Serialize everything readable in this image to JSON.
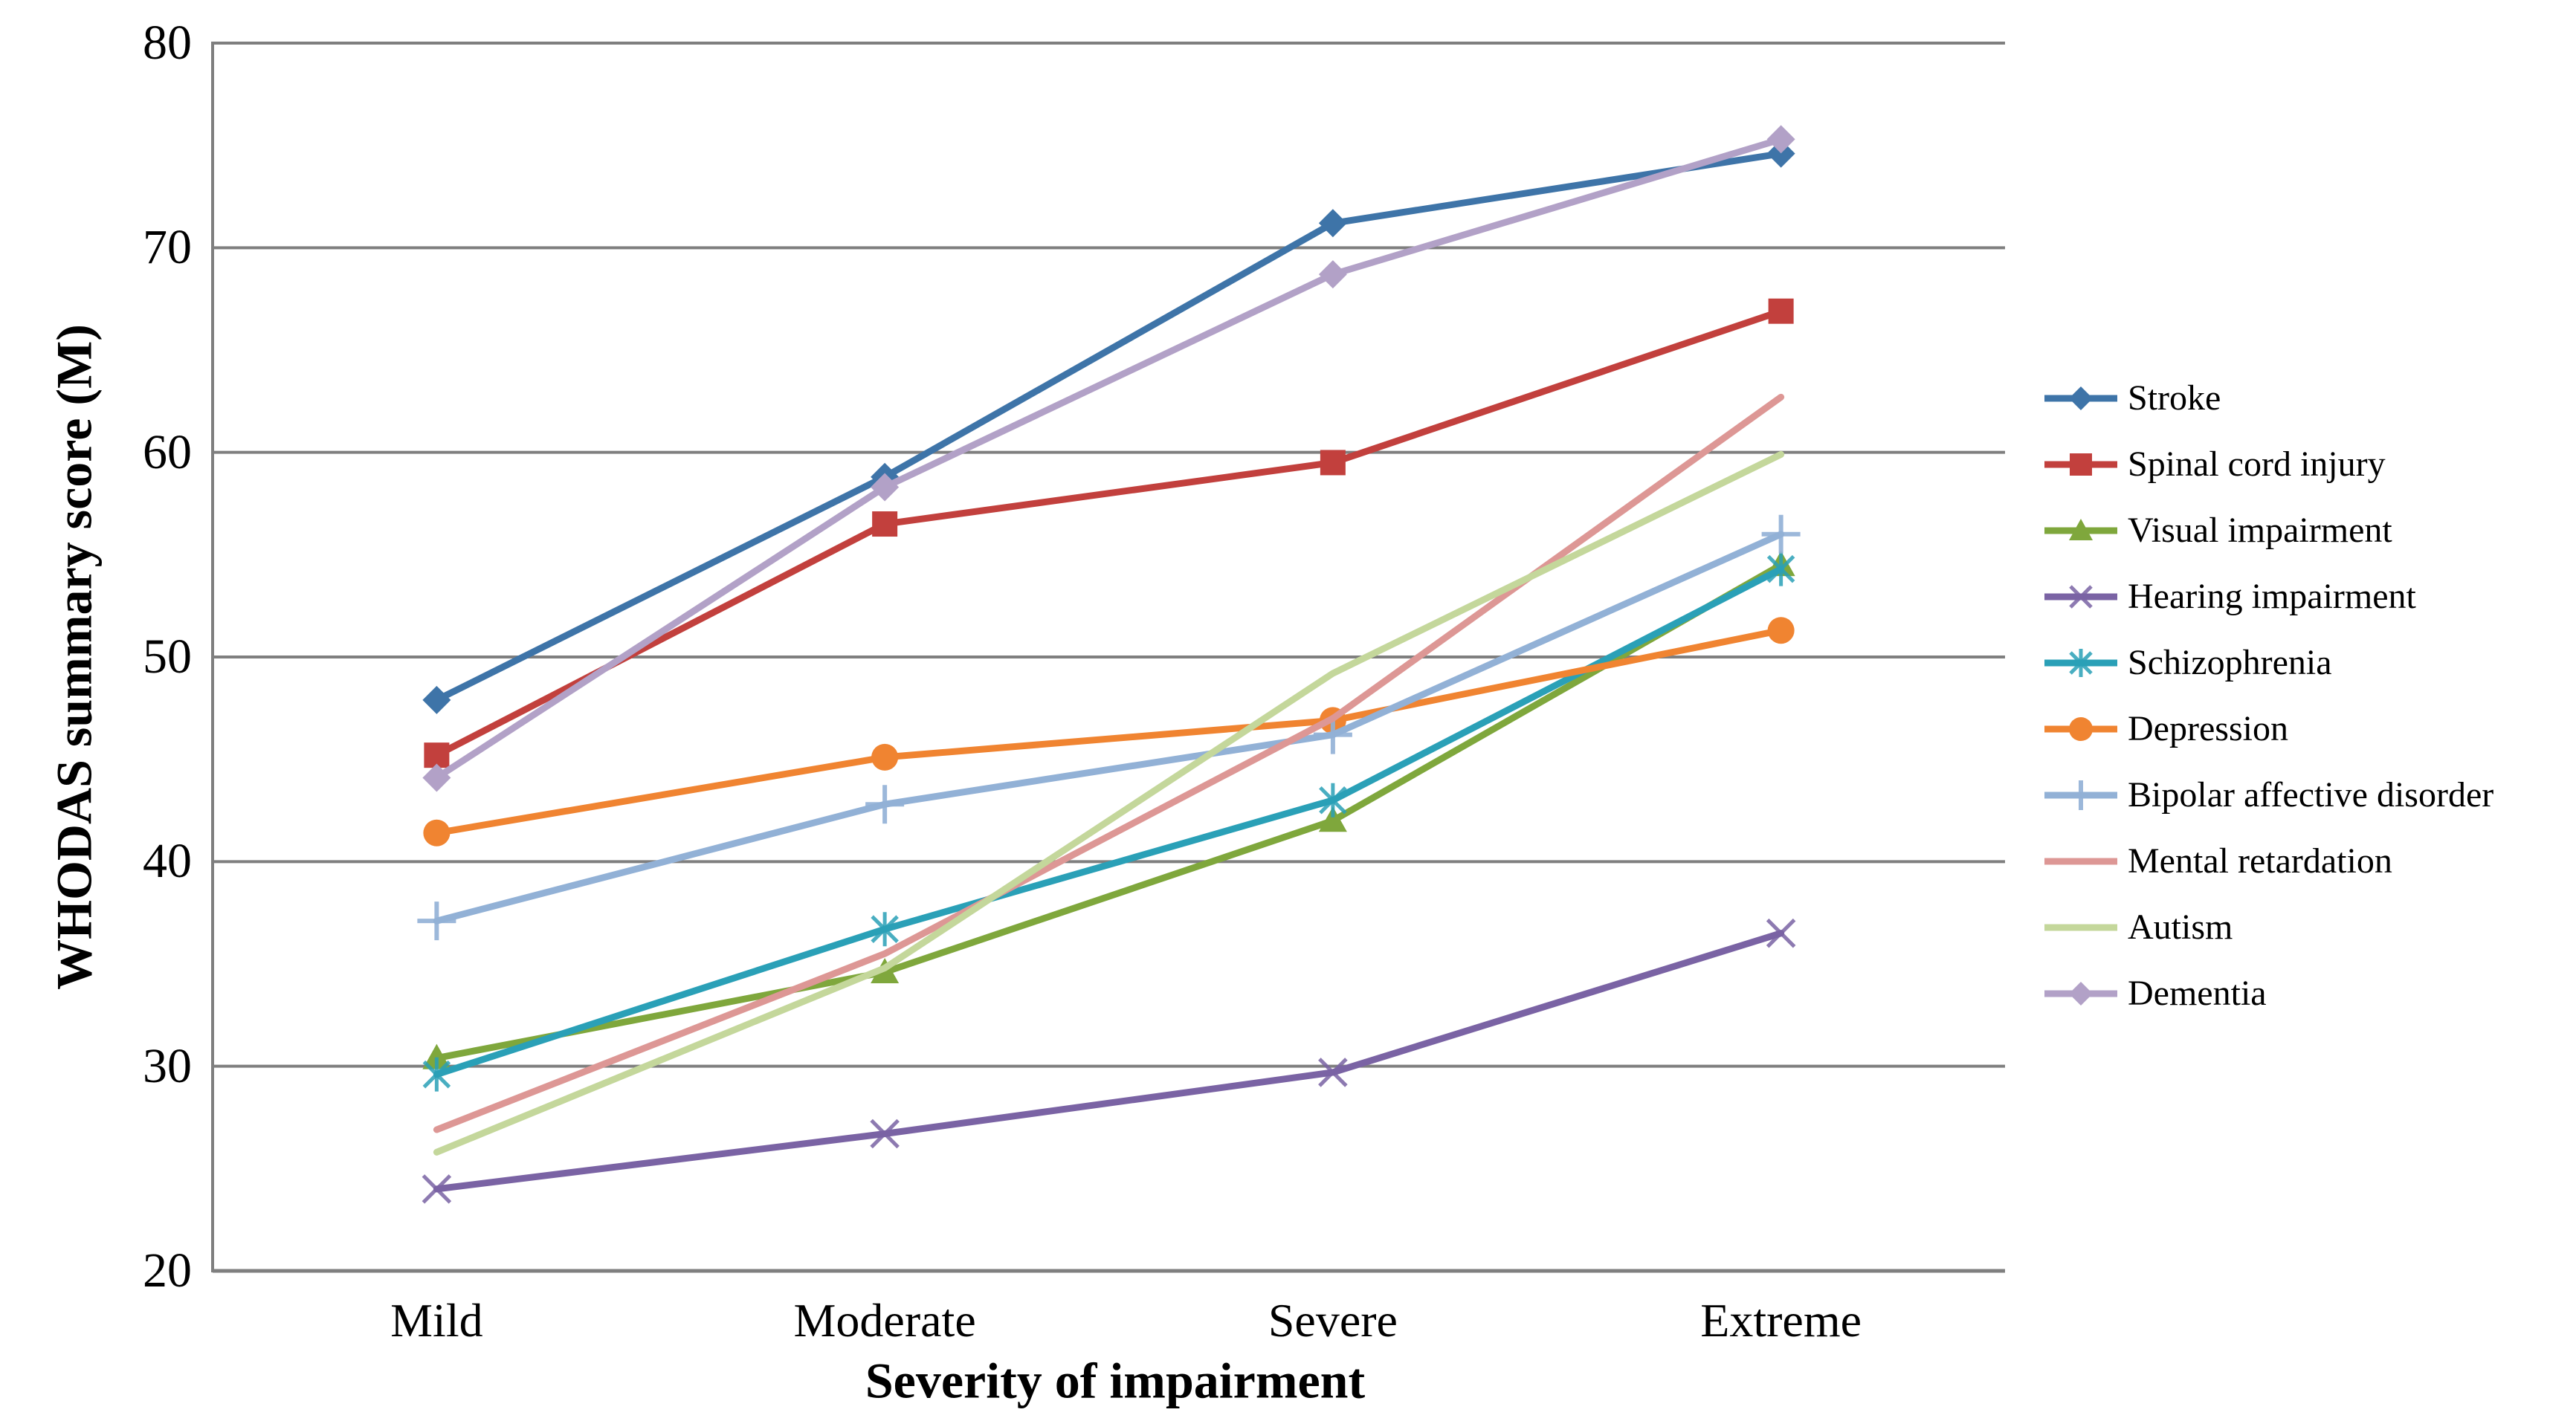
{
  "grid_color": "#7F7F7F",
  "background_color": "#FFFFFF",
  "text_color": "#000000",
  "chart_data": {
    "type": "line",
    "title": "",
    "xlabel": "Severity of impairment",
    "ylabel": "WHODAS summary score (M)",
    "ylim": [
      20,
      80
    ],
    "yticks": [
      20,
      30,
      40,
      50,
      60,
      70,
      80
    ],
    "grid": true,
    "legend_position": "right",
    "categories": [
      "Mild",
      "Moderate",
      "Severe",
      "Extreme"
    ],
    "series": [
      {
        "name": "Stroke",
        "color": "#3E74A8",
        "marker": "diamond",
        "values": [
          47.9,
          58.8,
          71.2,
          74.6
        ]
      },
      {
        "name": "Spinal cord injury",
        "color": "#C2403D",
        "marker": "square",
        "values": [
          45.2,
          56.5,
          59.5,
          66.9
        ]
      },
      {
        "name": "Visual impairment",
        "color": "#7FA73C",
        "marker": "triangle",
        "values": [
          30.4,
          34.6,
          42.0,
          54.5
        ]
      },
      {
        "name": "Hearing impairment",
        "color": "#7A63A4",
        "marker": "x",
        "values": [
          24.0,
          26.7,
          29.7,
          36.5
        ]
      },
      {
        "name": "Schizophrenia",
        "color": "#2AA0B7",
        "marker": "asterisk",
        "values": [
          29.6,
          36.7,
          43.0,
          54.3
        ]
      },
      {
        "name": "Depression",
        "color": "#F08431",
        "marker": "circle",
        "values": [
          41.4,
          45.1,
          46.9,
          51.3
        ]
      },
      {
        "name": "Bipolar affective disorder",
        "color": "#92B1D6",
        "marker": "plus",
        "values": [
          37.1,
          42.8,
          46.2,
          56.0
        ]
      },
      {
        "name": "Mental retardation",
        "color": "#DD9795",
        "marker": "none",
        "values": [
          26.9,
          35.5,
          47.0,
          62.7
        ]
      },
      {
        "name": "Autism",
        "color": "#C4D79B",
        "marker": "none",
        "values": [
          25.8,
          34.8,
          49.2,
          59.9
        ]
      },
      {
        "name": "Dementia",
        "color": "#B2A1C7",
        "marker": "diamond",
        "values": [
          44.1,
          58.3,
          68.7,
          75.3
        ]
      }
    ]
  }
}
